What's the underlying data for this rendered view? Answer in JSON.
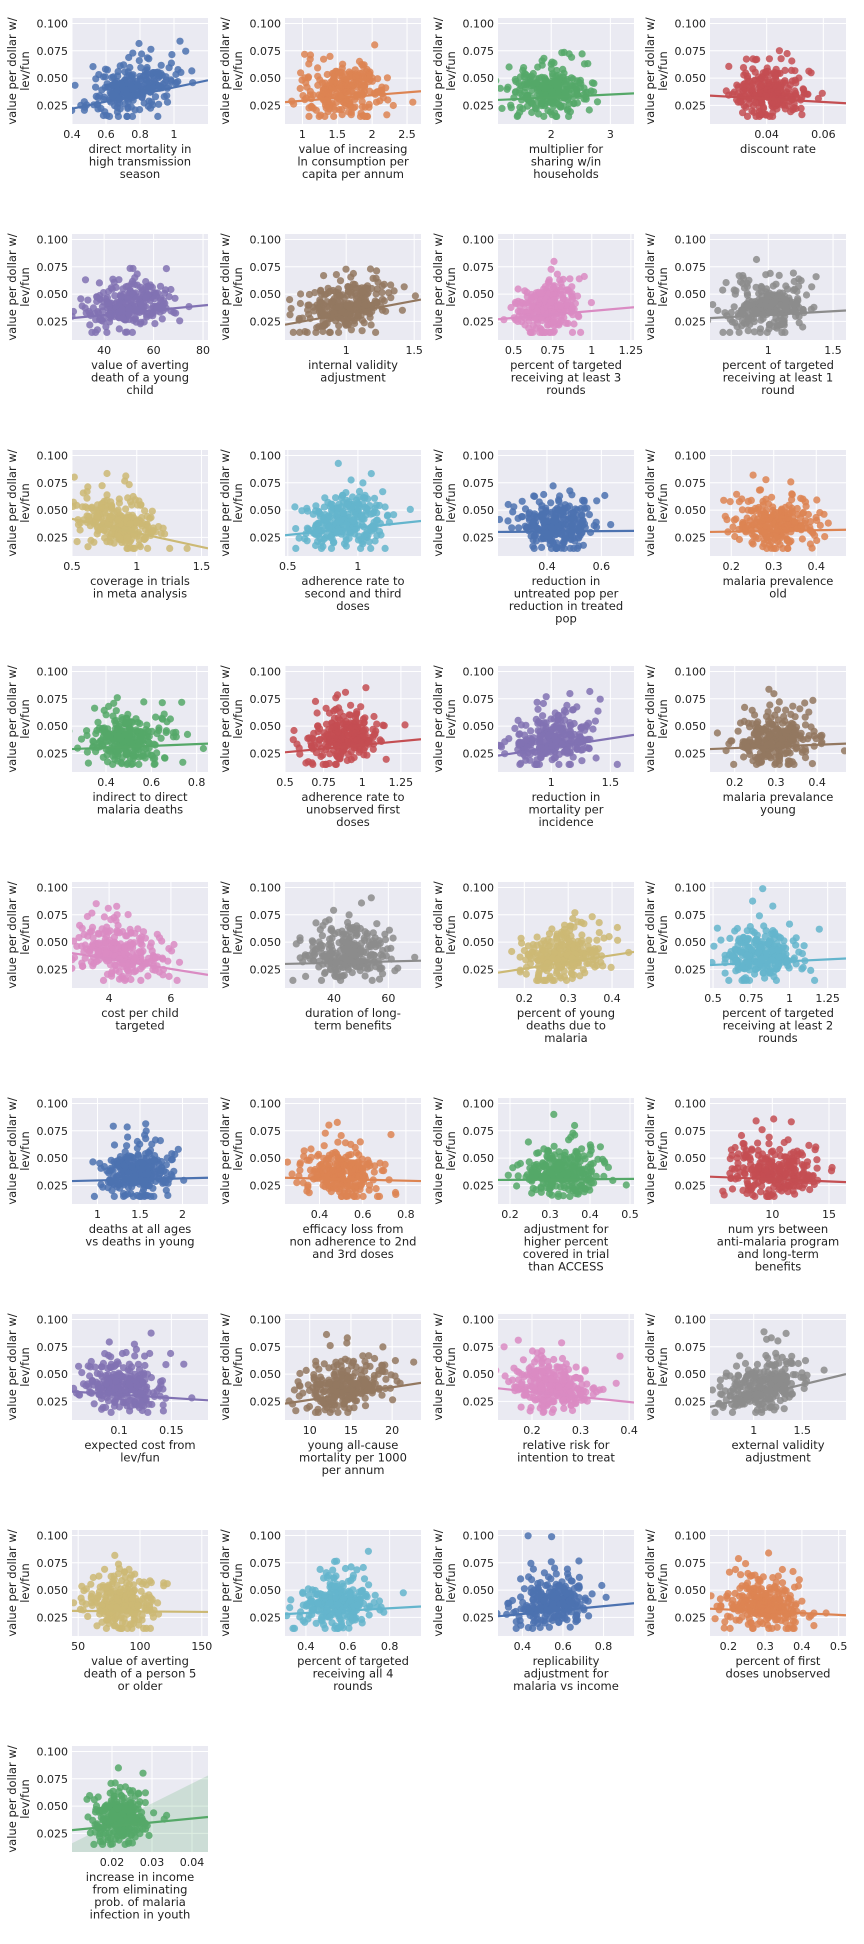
{
  "ylabel": [
    "value per dollar w/",
    "lev/fun"
  ],
  "y_ticks": [
    0.025,
    0.05,
    0.075,
    0.1
  ],
  "ylim": [
    0.008,
    0.105
  ],
  "chart_data": [
    {
      "type": "scatter",
      "xlabel": [
        "direct mortality in",
        "high transmission",
        "season"
      ],
      "xlim": [
        0.4,
        1.2
      ],
      "xticks": [
        0.4,
        0.6,
        0.8,
        1.0
      ],
      "x_center": 0.75,
      "x_spread": 0.13,
      "trend": [
        0.022,
        0.048
      ],
      "color": "#4C72B0"
    },
    {
      "type": "scatter",
      "xlabel": [
        "value of increasing",
        "ln consumption per",
        "capita per annum"
      ],
      "xlim": [
        0.75,
        2.7
      ],
      "xticks": [
        1.0,
        1.5,
        2.0,
        2.5
      ],
      "x_center": 1.6,
      "x_spread": 0.3,
      "trend": [
        0.028,
        0.038
      ],
      "color": "#DD8452"
    },
    {
      "type": "scatter",
      "xlabel": [
        "multiplier for",
        "sharing w/in",
        "households"
      ],
      "xlim": [
        1.1,
        3.4
      ],
      "xticks": [
        2,
        3
      ],
      "x_center": 2.0,
      "x_spread": 0.35,
      "trend": [
        0.03,
        0.036
      ],
      "color": "#55A868"
    },
    {
      "type": "scatter",
      "xlabel": [
        "discount rate"
      ],
      "xlim": [
        0.02,
        0.068
      ],
      "xticks": [
        0.04,
        0.06
      ],
      "x_center": 0.041,
      "x_spread": 0.007,
      "trend": [
        0.034,
        0.027
      ],
      "color": "#C44E52"
    },
    {
      "type": "scatter",
      "xlabel": [
        "value of averting",
        "death of a young",
        "child"
      ],
      "xlim": [
        27,
        82
      ],
      "xticks": [
        40,
        60,
        80
      ],
      "x_center": 50,
      "x_spread": 9,
      "trend": [
        0.028,
        0.04
      ],
      "color": "#8172B3"
    },
    {
      "type": "scatter",
      "xlabel": [
        "internal validity",
        "adjustment"
      ],
      "xlim": [
        0.55,
        1.55
      ],
      "xticks": [
        1.0,
        1.5
      ],
      "x_center": 1.0,
      "x_spread": 0.17,
      "trend": [
        0.022,
        0.045
      ],
      "color": "#937860"
    },
    {
      "type": "scatter",
      "xlabel": [
        "percent of targeted",
        "receiving at least 3",
        "rounds"
      ],
      "xlim": [
        0.4,
        1.27
      ],
      "xticks": [
        0.5,
        0.75,
        1.0,
        1.25
      ],
      "x_center": 0.72,
      "x_spread": 0.1,
      "trend": [
        0.027,
        0.038
      ],
      "color": "#DA8BC3"
    },
    {
      "type": "scatter",
      "xlabel": [
        "percent of targeted",
        "receiving at least 1",
        "round"
      ],
      "xlim": [
        0.55,
        1.6
      ],
      "xticks": [
        1.0,
        1.5
      ],
      "x_center": 1.0,
      "x_spread": 0.16,
      "trend": [
        0.028,
        0.035
      ],
      "color": "#8C8C8C"
    },
    {
      "type": "scatter",
      "xlabel": [
        "coverage in trials",
        "in meta analysis"
      ],
      "xlim": [
        0.5,
        1.55
      ],
      "xticks": [
        0.5,
        1.0,
        1.5
      ],
      "x_center": 0.88,
      "x_spread": 0.15,
      "trend": [
        0.042,
        0.015
      ],
      "color": "#CCB974"
    },
    {
      "type": "scatter",
      "xlabel": [
        "adherence rate to",
        "second and third",
        "doses"
      ],
      "xlim": [
        0.48,
        1.45
      ],
      "xticks": [
        0.5,
        1.0
      ],
      "x_center": 0.92,
      "x_spread": 0.15,
      "trend": [
        0.027,
        0.04
      ],
      "color": "#64B5CD"
    },
    {
      "type": "scatter",
      "xlabel": [
        "reduction in",
        "untreated pop per",
        "reduction in treated",
        "pop"
      ],
      "xlim": [
        0.22,
        0.72
      ],
      "xticks": [
        0.4,
        0.6
      ],
      "x_center": 0.43,
      "x_spread": 0.07,
      "trend": [
        0.03,
        0.031
      ],
      "color": "#4C72B0"
    },
    {
      "type": "scatter",
      "xlabel": [
        "malaria prevalence",
        "old"
      ],
      "xlim": [
        0.15,
        0.47
      ],
      "xticks": [
        0.2,
        0.3,
        0.4
      ],
      "x_center": 0.3,
      "x_spread": 0.05,
      "trend": [
        0.03,
        0.032
      ],
      "color": "#DD8452"
    },
    {
      "type": "scatter",
      "xlabel": [
        "indirect to direct",
        "malaria deaths"
      ],
      "xlim": [
        0.25,
        0.85
      ],
      "xticks": [
        0.4,
        0.6,
        0.8
      ],
      "x_center": 0.5,
      "x_spread": 0.09,
      "trend": [
        0.029,
        0.034
      ],
      "color": "#55A868"
    },
    {
      "type": "scatter",
      "xlabel": [
        "adherence rate to",
        "unobserved first",
        "doses"
      ],
      "xlim": [
        0.5,
        1.38
      ],
      "xticks": [
        0.5,
        0.75,
        1.0,
        1.25
      ],
      "x_center": 0.88,
      "x_spread": 0.13,
      "trend": [
        0.026,
        0.038
      ],
      "color": "#C44E52"
    },
    {
      "type": "scatter",
      "xlabel": [
        "reduction in",
        "mortality per",
        "incidence"
      ],
      "xlim": [
        0.55,
        1.7
      ],
      "xticks": [
        1.0,
        1.5
      ],
      "x_center": 1.0,
      "x_spread": 0.18,
      "trend": [
        0.023,
        0.042
      ],
      "color": "#8172B3"
    },
    {
      "type": "scatter",
      "xlabel": [
        "malaria prevalance",
        "young"
      ],
      "xlim": [
        0.14,
        0.47
      ],
      "xticks": [
        0.2,
        0.3,
        0.4
      ],
      "x_center": 0.3,
      "x_spread": 0.05,
      "trend": [
        0.029,
        0.034
      ],
      "color": "#937860"
    },
    {
      "type": "scatter",
      "xlabel": [
        "cost per child",
        "targeted"
      ],
      "xlim": [
        2.8,
        7.2
      ],
      "xticks": [
        4,
        6
      ],
      "x_center": 4.3,
      "x_spread": 0.75,
      "trend": [
        0.04,
        0.02
      ],
      "color": "#DA8BC3"
    },
    {
      "type": "scatter",
      "xlabel": [
        "duration of long-",
        "term benefits"
      ],
      "xlim": [
        22,
        72
      ],
      "xticks": [
        40,
        60
      ],
      "x_center": 45,
      "x_spread": 8,
      "trend": [
        0.03,
        0.033
      ],
      "color": "#8C8C8C"
    },
    {
      "type": "scatter",
      "xlabel": [
        "percent of young",
        "deaths due to",
        "malaria"
      ],
      "xlim": [
        0.14,
        0.45
      ],
      "xticks": [
        0.2,
        0.3,
        0.4
      ],
      "x_center": 0.29,
      "x_spread": 0.05,
      "trend": [
        0.022,
        0.041
      ],
      "color": "#CCB974"
    },
    {
      "type": "scatter",
      "xlabel": [
        "percent of targeted",
        "receiving at least 2",
        "rounds"
      ],
      "xlim": [
        0.48,
        1.37
      ],
      "xticks": [
        0.5,
        0.75,
        1.0,
        1.25
      ],
      "x_center": 0.82,
      "x_spread": 0.13,
      "trend": [
        0.029,
        0.035
      ],
      "color": "#64B5CD"
    },
    {
      "type": "scatter",
      "xlabel": [
        "deaths at all ages",
        "vs deaths in young"
      ],
      "xlim": [
        0.7,
        2.3
      ],
      "xticks": [
        1.0,
        1.5,
        2.0
      ],
      "x_center": 1.45,
      "x_spread": 0.2,
      "trend": [
        0.029,
        0.032
      ],
      "color": "#4C72B0"
    },
    {
      "type": "scatter",
      "xlabel": [
        "efficacy loss from",
        "non adherence to 2nd",
        "and 3rd doses"
      ],
      "xlim": [
        0.24,
        0.87
      ],
      "xticks": [
        0.4,
        0.6,
        0.8
      ],
      "x_center": 0.5,
      "x_spread": 0.09,
      "trend": [
        0.032,
        0.029
      ],
      "color": "#DD8452"
    },
    {
      "type": "scatter",
      "xlabel": [
        "adjustment for",
        "higher percent",
        "covered in trial",
        "than ACCESS"
      ],
      "xlim": [
        0.17,
        0.51
      ],
      "xticks": [
        0.2,
        0.3,
        0.4,
        0.5
      ],
      "x_center": 0.33,
      "x_spread": 0.05,
      "trend": [
        0.03,
        0.031
      ],
      "color": "#55A868"
    },
    {
      "type": "scatter",
      "xlabel": [
        "num yrs between",
        "anti-malaria program",
        "and long-term",
        "benefits"
      ],
      "xlim": [
        4.5,
        16.5
      ],
      "xticks": [
        10,
        15
      ],
      "x_center": 10,
      "x_spread": 1.9,
      "trend": [
        0.033,
        0.028
      ],
      "color": "#C44E52"
    },
    {
      "type": "scatter",
      "xlabel": [
        "expected cost from",
        "lev/fun"
      ],
      "xlim": [
        0.055,
        0.185
      ],
      "xticks": [
        0.1,
        0.15
      ],
      "x_center": 0.105,
      "x_spread": 0.02,
      "trend": [
        0.034,
        0.026
      ],
      "color": "#8172B3"
    },
    {
      "type": "scatter",
      "xlabel": [
        "young all-cause",
        "mortality per 1000",
        "per annum"
      ],
      "xlim": [
        7,
        23.5
      ],
      "xticks": [
        10,
        15,
        20
      ],
      "x_center": 14,
      "x_spread": 2.6,
      "trend": [
        0.023,
        0.042
      ],
      "color": "#937860"
    },
    {
      "type": "scatter",
      "xlabel": [
        "relative risk for",
        "intention to treat"
      ],
      "xlim": [
        0.13,
        0.41
      ],
      "xticks": [
        0.2,
        0.3,
        0.4
      ],
      "x_center": 0.24,
      "x_spread": 0.04,
      "trend": [
        0.037,
        0.024
      ],
      "color": "#DA8BC3"
    },
    {
      "type": "scatter",
      "xlabel": [
        "external validity",
        "adjustment"
      ],
      "xlim": [
        0.55,
        1.95
      ],
      "xticks": [
        1.0,
        1.5
      ],
      "x_center": 1.1,
      "x_spread": 0.22,
      "trend": [
        0.02,
        0.05
      ],
      "color": "#8C8C8C"
    },
    {
      "type": "scatter",
      "xlabel": [
        "value of averting",
        "death of a person 5",
        "or older"
      ],
      "xlim": [
        45,
        155
      ],
      "xticks": [
        50,
        100,
        150
      ],
      "x_center": 85,
      "x_spread": 15,
      "trend": [
        0.031,
        0.03
      ],
      "color": "#CCB974"
    },
    {
      "type": "scatter",
      "xlabel": [
        "percent of targeted",
        "receiving all 4",
        "rounds"
      ],
      "xlim": [
        0.3,
        0.95
      ],
      "xticks": [
        0.4,
        0.6,
        0.8
      ],
      "x_center": 0.55,
      "x_spread": 0.09,
      "trend": [
        0.028,
        0.035
      ],
      "color": "#64B5CD"
    },
    {
      "type": "scatter",
      "xlabel": [
        "replicability",
        "adjustment for",
        "malaria vs income"
      ],
      "xlim": [
        0.28,
        0.95
      ],
      "xticks": [
        0.4,
        0.6,
        0.8
      ],
      "x_center": 0.55,
      "x_spread": 0.09,
      "trend": [
        0.026,
        0.038
      ],
      "color": "#4C72B0"
    },
    {
      "type": "scatter",
      "xlabel": [
        "percent of first",
        "doses unobserved"
      ],
      "xlim": [
        0.15,
        0.52
      ],
      "xticks": [
        0.2,
        0.3,
        0.4,
        0.5
      ],
      "x_center": 0.3,
      "x_spread": 0.055,
      "trend": [
        0.033,
        0.027
      ],
      "color": "#DD8452"
    },
    {
      "type": "scatter",
      "xlabel": [
        "increase in income",
        "from eliminating",
        "prob. of malaria",
        "infection in youth"
      ],
      "xlim": [
        0.01,
        0.044
      ],
      "xticks": [
        0.02,
        0.03,
        0.04
      ],
      "x_center": 0.022,
      "x_spread": 0.0035,
      "trend": [
        0.028,
        0.04
      ],
      "color": "#55A868",
      "wide_band": true
    }
  ]
}
